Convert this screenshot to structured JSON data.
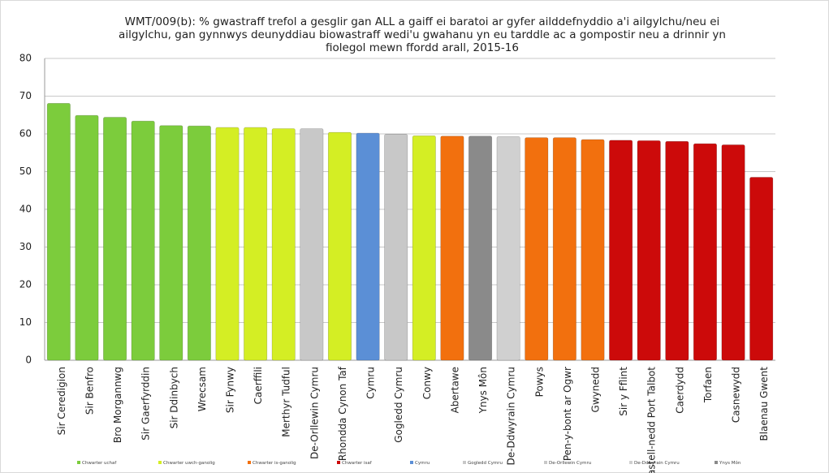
{
  "chart_data": {
    "type": "bar",
    "title": "WMT/009(b): % gwastraff trefol a gesglir gan ALL a gaiff ei baratoi ar gyfer ailddefnyddio a'i ailgylchu/neu ei ailgylchu, gan gynnwys deunyddiau biowastraff wedi'u gwahanu yn eu tarddle ac a gompostir neu a drinnir yn fiolegol mewn ffordd arall, 2015-16",
    "categories": [
      "Sir Ceredigion",
      "Sir Benfro",
      "Bro Morgannwg",
      "Sir Gaerfyrddin",
      "Sir Ddinbych",
      "Wrecsam",
      "Sir Fynwy",
      "Caerffili",
      "Merthyr Tudful",
      "De-Orllewin Cymru",
      "Rhondda Cynon Taf",
      "Cymru",
      "Gogledd Cymru",
      "Conwy",
      "Abertawe",
      "Ynys Môn",
      "De-Ddwyrain Cymru",
      "Powys",
      "Pen-y-bont ar Ogwr",
      "Gwynedd",
      "Sir y Fflint",
      "Castell-nedd Port Talbot",
      "Caerdydd",
      "Torfaen",
      "Casnewydd",
      "Blaenau Gwent"
    ],
    "values": [
      68.1,
      64.9,
      64.4,
      63.4,
      62.2,
      62.1,
      61.7,
      61.7,
      61.4,
      61.4,
      60.4,
      60.2,
      59.9,
      59.5,
      59.4,
      59.4,
      59.3,
      59.0,
      59.0,
      58.5,
      58.3,
      58.2,
      58.0,
      57.4,
      57.1,
      48.5
    ],
    "colors": [
      "#7ccc3c",
      "#7ccc3c",
      "#7ccc3c",
      "#7ccc3c",
      "#7ccc3c",
      "#7ccc3c",
      "#d4ee24",
      "#d4ee24",
      "#d4ee24",
      "#c8c8c8",
      "#d4ee24",
      "#5b8fd6",
      "#c8c8c8",
      "#d4ee24",
      "#f2700e",
      "#8a8a8a",
      "#d0d0d0",
      "#f2700e",
      "#f2700e",
      "#f2700e",
      "#cc0a0a",
      "#cc0a0a",
      "#cc0a0a",
      "#cc0a0a",
      "#cc0a0a",
      "#cc0a0a"
    ],
    "legend": [
      {
        "name": "Chwarter uchaf",
        "color": "#7ccc3c"
      },
      {
        "name": "Chwarter uwch-ganolig",
        "color": "#d4ee24"
      },
      {
        "name": "Chwarter is-ganolig",
        "color": "#f2700e"
      },
      {
        "name": "Chwarter isaf",
        "color": "#cc0a0a"
      },
      {
        "name": "Cymru",
        "color": "#5b8fd6"
      },
      {
        "name": "Gogledd Cymru",
        "color": "#c8c8c8"
      },
      {
        "name": "De-Orllewin Cymru",
        "color": "#c8c8c8"
      },
      {
        "name": "De-Ddwyrain Cymru",
        "color": "#d0d0d0"
      },
      {
        "name": "Ynys Môn",
        "color": "#8a8a8a"
      }
    ],
    "ylim": [
      0,
      80
    ],
    "yticks": [
      0,
      10,
      20,
      30,
      40,
      50,
      60,
      70,
      80
    ],
    "grid": true
  }
}
